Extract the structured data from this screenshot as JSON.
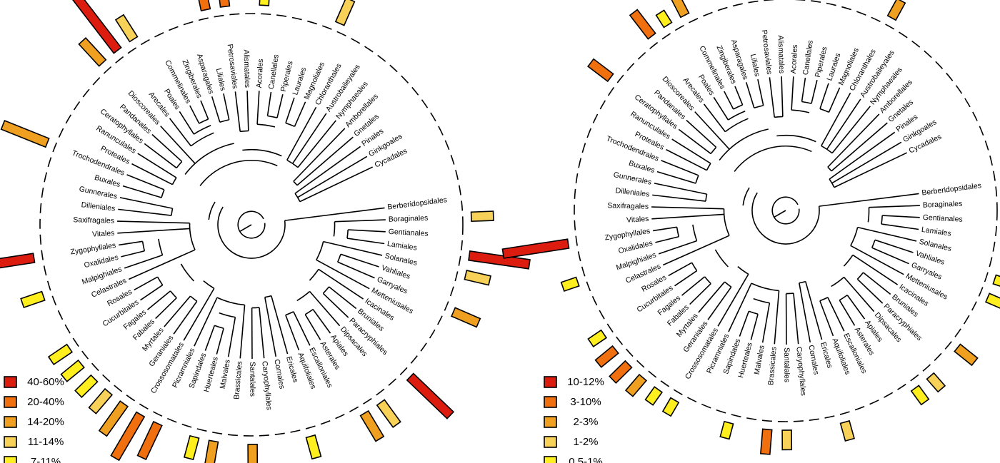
{
  "orders": [
    "Berberidopsidales",
    "Boraginales",
    "Gentianales",
    "Lamiales",
    "Solanales",
    "Vahliales",
    "Garryales",
    "Metteniusales",
    "Icacinales",
    "Bruniales",
    "Paracryphiales",
    "Dipsacales",
    "Apiales",
    "Asterales",
    "Escalloniales",
    "Aquifoliales",
    "Ericales",
    "Cornales",
    "Caryophyllales",
    "Santalales",
    "Brassicales",
    "Malvales",
    "Huerteales",
    "Sapindales",
    "Picramniales",
    "Crossosomatales",
    "Geraniales",
    "Myrtales",
    "Fabales",
    "Fagales",
    "Cucurbitales",
    "Rosales",
    "Celastrales",
    "Malpighiales",
    "Oxalidales",
    "Zygophyllales",
    "Vitales",
    "Saxifragales",
    "Dilleniales",
    "Gunnerales",
    "Buxales",
    "Trochodendrales",
    "Proteales",
    "Ranunculales",
    "Ceratophyllales",
    "Pandanales",
    "Dioscoreales",
    "Arecales",
    "Poales",
    "Commelinales",
    "Zingiberales",
    "Asparagales",
    "Liliales",
    "Petrosaviales",
    "Alismatales",
    "Acorales",
    "Canellales",
    "Piperales",
    "Laurales",
    "Magnoliales",
    "Chloranthales",
    "Austrobaileyales",
    "Nymphaeales",
    "Amborellales",
    "Gnetales",
    "Pinales",
    "Ginkgoales",
    "Cycadales"
  ],
  "colors": {
    "40-60": "#dd1c10",
    "20-40": "#f07010",
    "14-20": "#f0a020",
    "11-14": "#f7d158",
    "7-11": "#ffef1e"
  },
  "left_panel": {
    "legend": [
      {
        "label": "40-60%",
        "color": "#dd1c10"
      },
      {
        "label": "20-40%",
        "color": "#f07010"
      },
      {
        "label": "14-20%",
        "color": "#f0a020"
      },
      {
        "label": "11-14%",
        "color": "#f7d158"
      },
      {
        "label": "7-11%",
        "color": "#ffef1e"
      }
    ],
    "bars": [
      {
        "order": "Boraginales",
        "value": 1,
        "class": "11-14"
      },
      {
        "order": "Lamiales",
        "value": 4,
        "class": "40-60"
      },
      {
        "order": "Solanales",
        "value": 1.2,
        "class": "11-14"
      },
      {
        "order": "Garryales",
        "value": 1.4,
        "class": "14-20"
      },
      {
        "order": "Paracryphiales",
        "value": 3.6,
        "class": "40-60"
      },
      {
        "order": "Apiales",
        "value": 1.4,
        "class": "11-14"
      },
      {
        "order": "Asterales",
        "value": 1.6,
        "class": "14-20"
      },
      {
        "order": "Ericales",
        "value": 1,
        "class": "7-11"
      },
      {
        "order": "Santalales",
        "value": 1.3,
        "class": "14-20"
      },
      {
        "order": "Malvales",
        "value": 1.3,
        "class": "14-20"
      },
      {
        "order": "Huerteales",
        "value": 1,
        "class": "7-11"
      },
      {
        "order": "Picramniales",
        "value": 2.2,
        "class": "20-40"
      },
      {
        "order": "Crossosomatales",
        "value": 3.2,
        "class": "20-40"
      },
      {
        "order": "Geraniales",
        "value": 2.1,
        "class": "14-20"
      },
      {
        "order": "Myrtales",
        "value": 1.2,
        "class": "11-14"
      },
      {
        "order": "Fabales",
        "value": 1,
        "class": "7-11"
      },
      {
        "order": "Fagales",
        "value": 1,
        "class": "7-11"
      },
      {
        "order": "Cucurbitales",
        "value": 1,
        "class": "7-11"
      },
      {
        "order": "Malpighiales",
        "value": 1,
        "class": "7-11"
      },
      {
        "order": "Zygophyllales",
        "value": 4.2,
        "class": "40-60"
      },
      {
        "order": "Trochodendrales",
        "value": 3,
        "class": "14-20"
      },
      {
        "order": "Dioscoreales",
        "value": 1.6,
        "class": "14-20"
      },
      {
        "order": "Arecales",
        "value": 4.6,
        "class": "40-60"
      },
      {
        "order": "Poales",
        "value": 1.3,
        "class": "11-14"
      },
      {
        "order": "Liliales",
        "value": 3.8,
        "class": "20-40"
      },
      {
        "order": "Petrosaviales",
        "value": 3.8,
        "class": "20-40"
      },
      {
        "order": "Acorales",
        "value": 1,
        "class": "7-11"
      },
      {
        "order": "Magnoliales",
        "value": 1.3,
        "class": "11-14"
      }
    ]
  },
  "right_panel": {
    "legend": [
      {
        "label": "10-12%",
        "color": "#dd1c10"
      },
      {
        "label": "3-10%",
        "color": "#f07010"
      },
      {
        "label": "2-3%",
        "color": "#f0a020"
      },
      {
        "label": "1-2%",
        "color": "#f7d158"
      },
      {
        "label": "0.5-1%",
        "color": "#ffef1e"
      }
    ],
    "bars": [
      {
        "order": "Boraginales",
        "value": 1,
        "class": "20-40"
      },
      {
        "order": "Vahliales",
        "value": 0.8,
        "class": "7-11"
      },
      {
        "order": "Garryales",
        "value": 0.6,
        "class": "7-11"
      },
      {
        "order": "Bruniales",
        "value": 1,
        "class": "14-20"
      },
      {
        "order": "Dipsacales",
        "value": 0.6,
        "class": "11-14"
      },
      {
        "order": "Apiales",
        "value": 0.6,
        "class": "7-11"
      },
      {
        "order": "Ericales",
        "value": 0.7,
        "class": "11-14"
      },
      {
        "order": "Santalales",
        "value": 0.8,
        "class": "11-14"
      },
      {
        "order": "Brassicales",
        "value": 1.2,
        "class": "20-40"
      },
      {
        "order": "Huerteales",
        "value": 0.5,
        "class": "7-11"
      },
      {
        "order": "Crossosomatales",
        "value": 0.5,
        "class": "7-11"
      },
      {
        "order": "Geraniales",
        "value": 0.5,
        "class": "7-11"
      },
      {
        "order": "Myrtales",
        "value": 0.9,
        "class": "14-20"
      },
      {
        "order": "Fabales",
        "value": 1,
        "class": "20-40"
      },
      {
        "order": "Fagales",
        "value": 1,
        "class": "20-40"
      },
      {
        "order": "Cucurbitales",
        "value": 0.5,
        "class": "7-11"
      },
      {
        "order": "Malpighiales",
        "value": 0.5,
        "class": "7-11"
      },
      {
        "order": "Zygophyllales",
        "value": 4.4,
        "class": "40-60"
      },
      {
        "order": "Ceratophyllales",
        "value": 1.2,
        "class": "20-40"
      },
      {
        "order": "Arecales",
        "value": 1.6,
        "class": "20-40"
      },
      {
        "order": "Poales",
        "value": 0.4,
        "class": "7-11"
      },
      {
        "order": "Commelinales",
        "value": 0.9,
        "class": "14-20"
      },
      {
        "order": "Liliales",
        "value": 0.9,
        "class": "14-20"
      },
      {
        "order": "Petrosaviales",
        "value": 4,
        "class": "40-60"
      },
      {
        "order": "Canellales",
        "value": 0.4,
        "class": "7-11"
      },
      {
        "order": "Chloranthales",
        "value": 0.8,
        "class": "14-20"
      }
    ]
  }
}
